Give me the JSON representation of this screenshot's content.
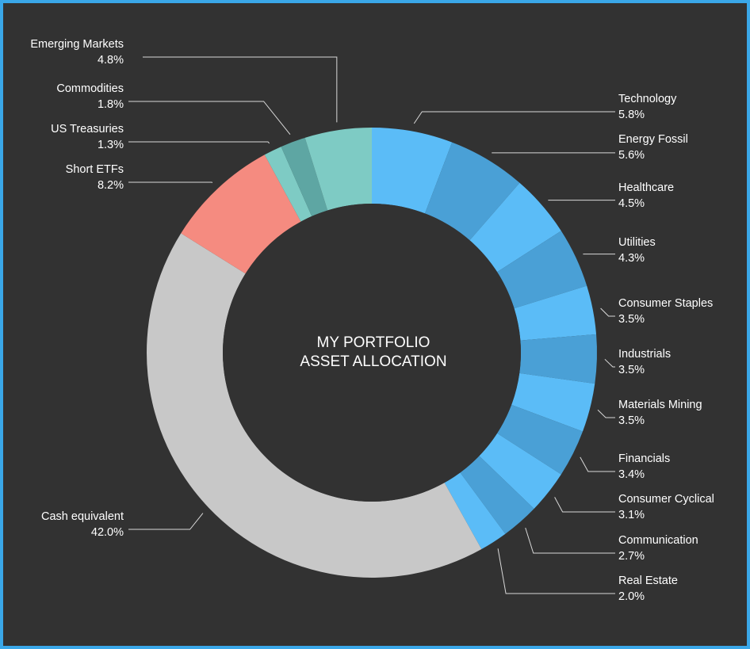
{
  "chart_data": {
    "type": "pie",
    "donut": true,
    "title_lines": [
      "MY PORTFOLIO",
      "ASSET ALLOCATION"
    ],
    "start_angle_deg": 0,
    "direction": "clockwise",
    "legend": "none",
    "slices": [
      {
        "name": "Technology",
        "value": 5.8,
        "label": "5.8%",
        "color": "#5bbcf7",
        "side": "right"
      },
      {
        "name": "Energy Fossil",
        "value": 5.6,
        "label": "5.6%",
        "color": "#4aa0d6",
        "side": "right"
      },
      {
        "name": "Healthcare",
        "value": 4.5,
        "label": "4.5%",
        "color": "#5bbcf7",
        "side": "right"
      },
      {
        "name": "Utilities",
        "value": 4.3,
        "label": "4.3%",
        "color": "#4aa0d6",
        "side": "right"
      },
      {
        "name": "Consumer Staples",
        "value": 3.5,
        "label": "3.5%",
        "color": "#5bbcf7",
        "side": "right"
      },
      {
        "name": "Industrials",
        "value": 3.5,
        "label": "3.5%",
        "color": "#4aa0d6",
        "side": "right"
      },
      {
        "name": "Materials Mining",
        "value": 3.5,
        "label": "3.5%",
        "color": "#5bbcf7",
        "side": "right"
      },
      {
        "name": "Financials",
        "value": 3.4,
        "label": "3.4%",
        "color": "#4aa0d6",
        "side": "right"
      },
      {
        "name": "Consumer Cyclical",
        "value": 3.1,
        "label": "3.1%",
        "color": "#5bbcf7",
        "side": "right"
      },
      {
        "name": "Communication",
        "value": 2.7,
        "label": "2.7%",
        "color": "#4aa0d6",
        "side": "right"
      },
      {
        "name": "Real Estate",
        "value": 2.0,
        "label": "2.0%",
        "color": "#5bbcf7",
        "side": "right"
      },
      {
        "name": "Cash equivalent",
        "value": 42.0,
        "label": "42.0%",
        "color": "#c8c8c8",
        "side": "left"
      },
      {
        "name": "Short ETFs",
        "value": 8.2,
        "label": "8.2%",
        "color": "#f58b80",
        "side": "left"
      },
      {
        "name": "US Treasuries",
        "value": 1.3,
        "label": "1.3%",
        "color": "#7ecbc4",
        "side": "left"
      },
      {
        "name": "Commodities",
        "value": 1.8,
        "label": "1.8%",
        "color": "#5ea6a3",
        "side": "left"
      },
      {
        "name": "Emerging Markets",
        "value": 4.8,
        "label": "4.8%",
        "color": "#7ecbc4",
        "side": "left"
      }
    ]
  }
}
